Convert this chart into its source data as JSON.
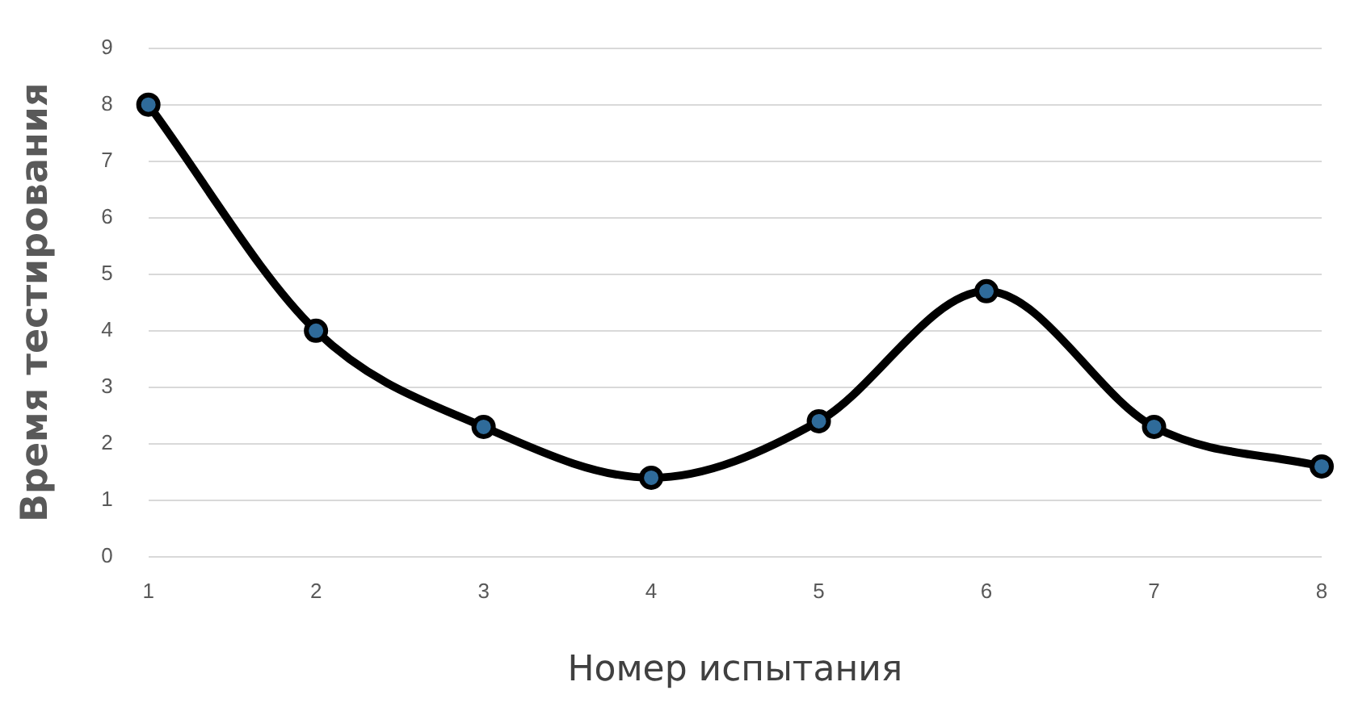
{
  "chart_data": {
    "type": "line",
    "xlabel": "Номер испытания",
    "ylabel": "Время тестирования",
    "categories": [
      "1",
      "2",
      "3",
      "4",
      "5",
      "6",
      "7",
      "8"
    ],
    "series": [
      {
        "color": "#000000",
        "values": [
          8,
          4,
          2.3,
          1.4,
          2.4,
          4.7,
          2.3,
          1.6
        ]
      }
    ],
    "ylim": [
      0,
      9
    ],
    "yticks": [
      0,
      1,
      2,
      3,
      4,
      5,
      6,
      7,
      8,
      9
    ],
    "grid": "y",
    "legend": false,
    "marker": "circle",
    "line_style": "solid"
  }
}
